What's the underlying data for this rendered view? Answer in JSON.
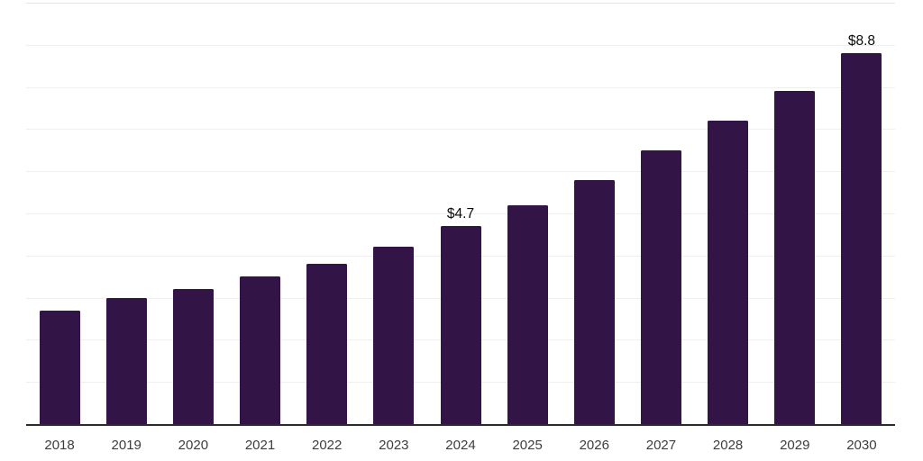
{
  "chart_data": {
    "type": "bar",
    "title": "",
    "xlabel": "",
    "ylabel": "",
    "categories": [
      "2018",
      "2019",
      "2020",
      "2021",
      "2022",
      "2023",
      "2024",
      "2025",
      "2026",
      "2027",
      "2028",
      "2029",
      "2030"
    ],
    "values": [
      2.7,
      3.0,
      3.2,
      3.5,
      3.8,
      4.2,
      4.7,
      5.2,
      5.8,
      6.5,
      7.2,
      7.9,
      8.8
    ],
    "bar_value_labels": [
      null,
      null,
      null,
      null,
      null,
      null,
      "$4.7",
      null,
      null,
      null,
      null,
      null,
      "$8.8"
    ],
    "ylim": [
      0,
      10
    ],
    "gridline_step": 1,
    "grid": true,
    "y_tick_labels_visible": false,
    "legend": false
  },
  "colors": {
    "bar": "#331447",
    "gridline": "#efefef",
    "top_gridline": "#e4e4e4",
    "axis_line": "#2b2b2b",
    "tick_label": "#3d3d3d",
    "value_label": "#0a0a0a",
    "background": "#ffffff"
  }
}
